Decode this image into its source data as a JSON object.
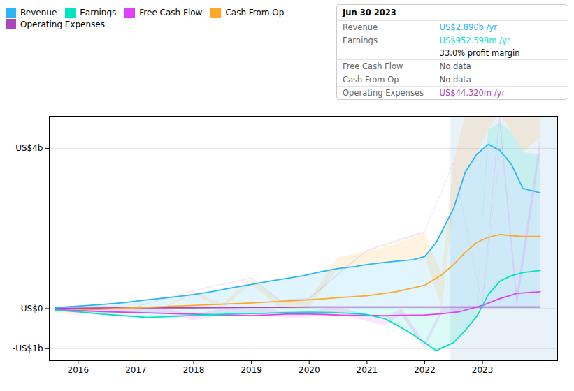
{
  "chart_data": {
    "type": "area",
    "xlim": [
      2015.5,
      2024.3
    ],
    "ylim": [
      -1.3,
      4.8
    ],
    "xticks": [
      2016,
      2017,
      2018,
      2019,
      2020,
      2021,
      2022,
      2023
    ],
    "yticks": [
      {
        "value": -1,
        "label": "-US$1b"
      },
      {
        "value": 0,
        "label": "US$0"
      },
      {
        "value": 4,
        "label": "US$4b"
      }
    ],
    "grid": true,
    "legend": "top",
    "highlight_x": [
      2022.45,
      2024.3
    ],
    "series": [
      {
        "name": "Revenue",
        "color": "#29b6f6",
        "x": [
          2015.6,
          2016.0,
          2016.4,
          2016.8,
          2017.2,
          2017.6,
          2018.0,
          2018.3,
          2018.6,
          2019.0,
          2019.3,
          2019.6,
          2019.9,
          2020.2,
          2020.5,
          2020.8,
          2021.0,
          2021.3,
          2021.5,
          2021.8,
          2022.0,
          2022.2,
          2022.5,
          2022.7,
          2022.9,
          2023.1,
          2023.3,
          2023.5,
          2023.7,
          2024.0
        ],
        "values": [
          0.02,
          0.06,
          0.1,
          0.15,
          0.22,
          0.28,
          0.35,
          0.42,
          0.5,
          0.6,
          0.68,
          0.75,
          0.82,
          0.92,
          1.0,
          1.05,
          1.1,
          1.15,
          1.18,
          1.22,
          1.3,
          1.65,
          2.5,
          3.4,
          3.85,
          4.1,
          3.95,
          3.6,
          3.0,
          2.89
        ]
      },
      {
        "name": "Earnings",
        "color": "#00e5c0",
        "x": [
          2015.6,
          2016.0,
          2016.4,
          2016.8,
          2017.2,
          2017.6,
          2018.0,
          2018.4,
          2018.8,
          2019.2,
          2019.6,
          2020.0,
          2020.4,
          2020.7,
          2021.0,
          2021.3,
          2021.5,
          2021.8,
          2022.0,
          2022.2,
          2022.5,
          2022.7,
          2022.9,
          2023.1,
          2023.3,
          2023.5,
          2023.7,
          2024.0
        ],
        "values": [
          -0.04,
          -0.08,
          -0.14,
          -0.18,
          -0.22,
          -0.2,
          -0.17,
          -0.15,
          -0.13,
          -0.12,
          -0.1,
          -0.09,
          -0.1,
          -0.12,
          -0.15,
          -0.25,
          -0.4,
          -0.65,
          -0.85,
          -1.05,
          -0.85,
          -0.55,
          -0.2,
          0.35,
          0.68,
          0.82,
          0.9,
          0.95
        ]
      },
      {
        "name": "Free Cash Flow",
        "color": "#e040fb",
        "x": [
          2015.6,
          2016.0,
          2016.5,
          2017.0,
          2017.5,
          2018.0,
          2018.5,
          2019.0,
          2019.3,
          2019.6,
          2020.0,
          2020.3,
          2020.6,
          2021.0,
          2021.3,
          2021.6,
          2022.0,
          2022.3,
          2022.6,
          2023.0,
          2023.3,
          2023.6,
          2024.0
        ],
        "values": [
          -0.02,
          -0.05,
          -0.08,
          -0.1,
          -0.12,
          -0.14,
          -0.16,
          -0.18,
          -0.16,
          -0.14,
          -0.14,
          -0.15,
          -0.17,
          -0.17,
          -0.18,
          -0.17,
          -0.16,
          -0.13,
          -0.08,
          0.08,
          0.25,
          0.38,
          0.42
        ]
      },
      {
        "name": "Cash From Op",
        "color": "#ffa726",
        "x": [
          2015.6,
          2016.0,
          2016.5,
          2017.0,
          2017.5,
          2018.0,
          2018.5,
          2019.0,
          2019.5,
          2020.0,
          2020.5,
          2021.0,
          2021.5,
          2022.0,
          2022.3,
          2022.5,
          2022.7,
          2022.9,
          2023.1,
          2023.3,
          2023.5,
          2023.7,
          2024.0
        ],
        "values": [
          -0.06,
          -0.04,
          -0.01,
          0.02,
          0.05,
          0.08,
          0.11,
          0.14,
          0.18,
          0.22,
          0.27,
          0.32,
          0.42,
          0.58,
          0.85,
          1.1,
          1.4,
          1.65,
          1.78,
          1.85,
          1.82,
          1.8,
          1.8
        ]
      },
      {
        "name": "Operating Expenses",
        "color": "#ab47bc",
        "x": [
          2015.6,
          2016.0,
          2017.0,
          2018.0,
          2019.0,
          2019.5,
          2020.0,
          2021.0,
          2022.0,
          2022.5,
          2023.0,
          2023.5,
          2024.0
        ],
        "values": [
          0.01,
          0.01,
          0.02,
          0.02,
          0.03,
          0.03,
          0.04,
          0.04,
          0.04,
          0.04,
          0.04,
          0.04,
          0.04
        ]
      }
    ],
    "annotations": [
      {
        "text": "Jun 30 2023"
      },
      {
        "label": "Revenue",
        "text": "US$2.890b /yr",
        "color": "#29b6f6"
      },
      {
        "label": "Earnings",
        "text": "US$952.598m /yr",
        "color": "#00e5c0"
      },
      {
        "text": "33.0% profit margin",
        "color": "#000000"
      },
      {
        "label": "Free Cash Flow",
        "text": "No data",
        "color": "#555566"
      },
      {
        "label": "Cash From Op",
        "text": "No data",
        "color": "#555566"
      },
      {
        "label": "Operating Expenses",
        "text": "US$44.320m /yr",
        "color": "#ab47bc"
      }
    ]
  }
}
